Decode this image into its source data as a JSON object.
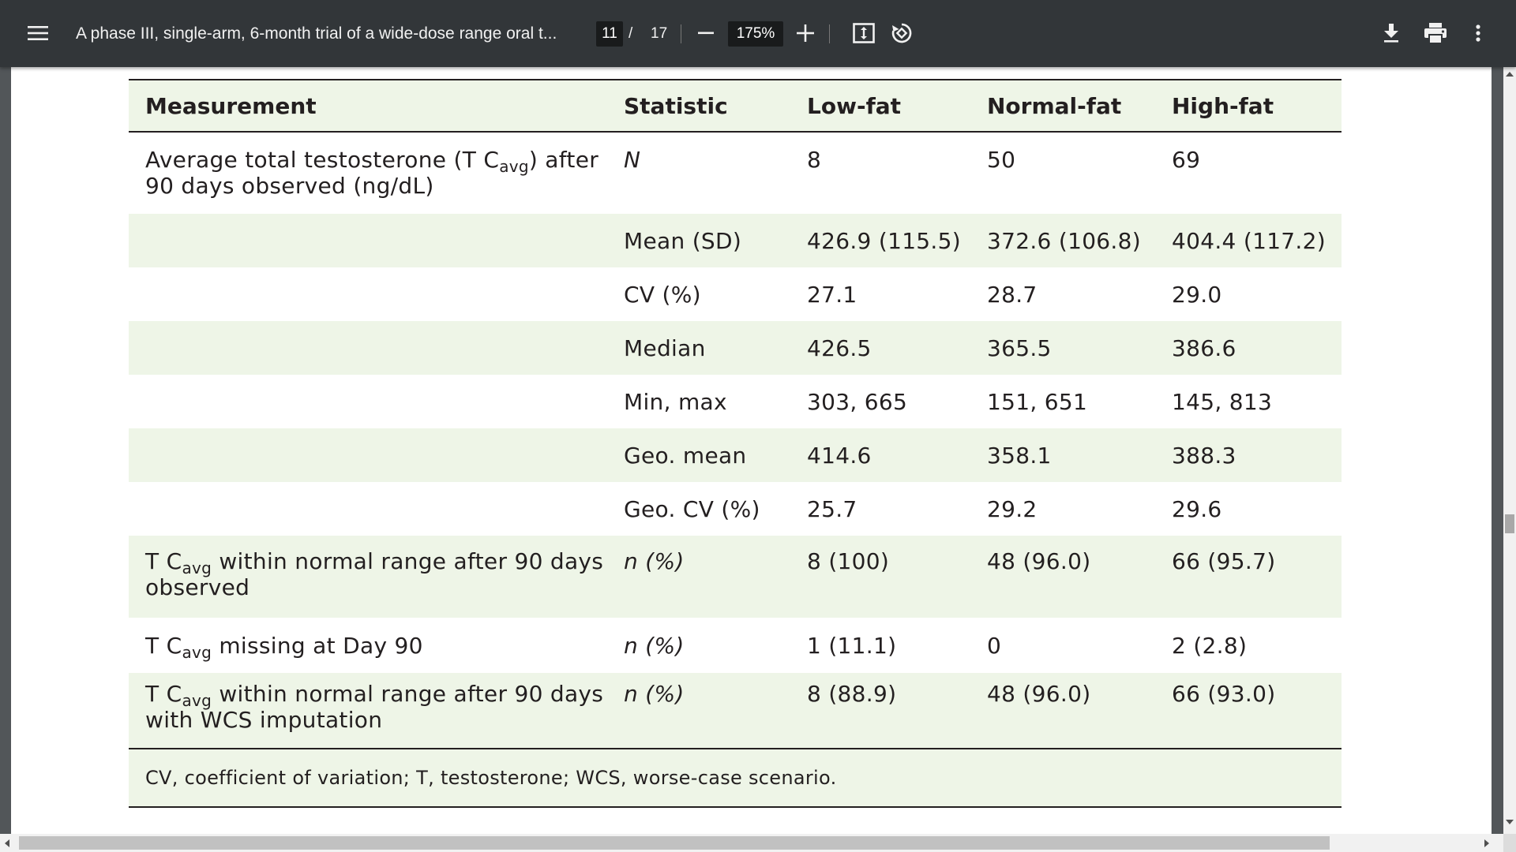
{
  "toolbar": {
    "title": "A phase III, single-arm, 6-month trial of a wide-dose range oral t...",
    "current_page": "11",
    "page_separator": "/",
    "total_pages": "17",
    "zoom": "175%",
    "icons": {
      "menu": "hamburger-menu-icon",
      "zoom_out": "minus-icon",
      "zoom_in": "plus-icon",
      "fit": "fit-to-page-icon",
      "rotate": "rotate-counterclockwise-icon",
      "download": "download-icon",
      "print": "print-icon",
      "more": "more-vertical-icon"
    }
  },
  "table": {
    "headers": [
      "Measurement",
      "Statistic",
      "Low-fat",
      "Normal-fat",
      "High-fat"
    ],
    "rows": [
      {
        "m1": "Average total testosterone (T C",
        "m_sub": "avg",
        "m2": ") after 90 days observed (ng/dL)",
        "stat": "N",
        "low": "8",
        "normal": "50",
        "high": "69"
      },
      {
        "stat": "Mean (SD)",
        "low": "426.9 (115.5)",
        "normal": "372.6 (106.8)",
        "high": "404.4 (117.2)"
      },
      {
        "stat": "CV (%)",
        "low": "27.1",
        "normal": "28.7",
        "high": "29.0"
      },
      {
        "stat": "Median",
        "low": "426.5",
        "normal": "365.5",
        "high": "386.6"
      },
      {
        "stat": "Min, max",
        "low": "303, 665",
        "normal": "151, 651",
        "high": "145, 813"
      },
      {
        "stat": "Geo. mean",
        "low": "414.6",
        "normal": "358.1",
        "high": "388.3"
      },
      {
        "stat": "Geo. CV (%)",
        "low": "25.7",
        "normal": "29.2",
        "high": "29.6"
      },
      {
        "m1": "T C",
        "m_sub": "avg",
        "m2": " within normal range after 90 days observed",
        "stat": "n (%)",
        "low": "8 (100)",
        "normal": "48 (96.0)",
        "high": "66 (95.7)"
      },
      {
        "m1": "T C",
        "m_sub": "avg",
        "m2": " missing at Day 90",
        "stat": "n (%)",
        "low": "1 (11.1)",
        "normal": "0",
        "high": "2 (2.8)"
      },
      {
        "m1": "T C",
        "m_sub": "avg",
        "m2": " within normal range after 90 days with WCS imputation",
        "stat": "n (%)",
        "low": "8 (88.9)",
        "normal": "48 (96.0)",
        "high": "66 (93.0)"
      }
    ],
    "footnote": "CV, coefficient of variation; T, testosterone; WCS, worse-case scenario."
  },
  "colors": {
    "toolbar_bg": "#323639",
    "table_shade": "#eef5e7",
    "text": "#231f20"
  }
}
